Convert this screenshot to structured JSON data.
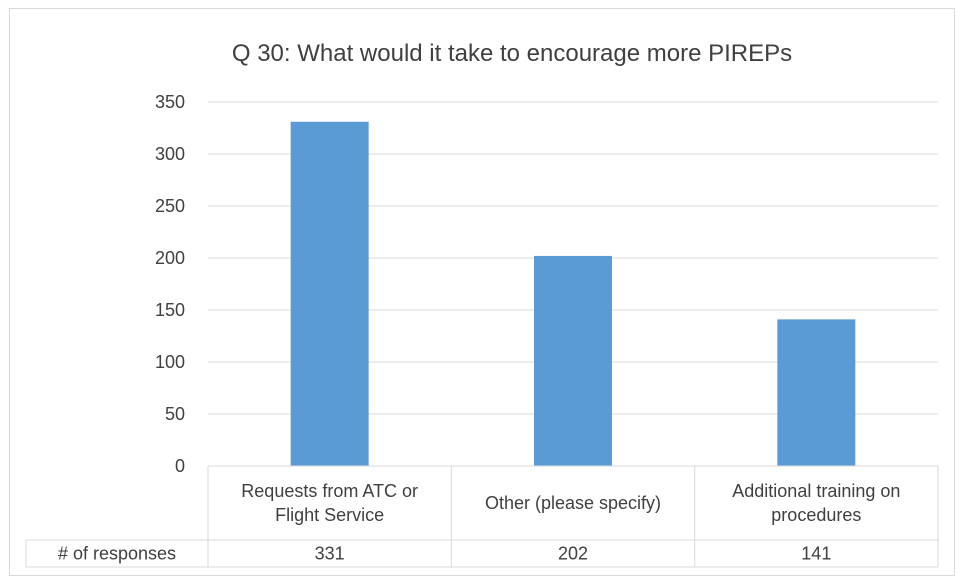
{
  "chart_data": {
    "type": "bar",
    "title": "Q 30: What would it take to encourage more PIREPs",
    "categories": [
      [
        "Requests from ATC or",
        "Flight Service"
      ],
      [
        "Other (please specify)"
      ],
      [
        "Additional training on",
        "procedures"
      ]
    ],
    "series": [
      {
        "name": "# of responses",
        "values": [
          331,
          202,
          141
        ]
      }
    ],
    "value_labels": [
      "331",
      "202",
      "141"
    ],
    "ylim": [
      0,
      350
    ],
    "yticks": [
      0,
      50,
      100,
      150,
      200,
      250,
      300,
      350
    ],
    "ytick_labels": [
      "0",
      "50",
      "100",
      "150",
      "200",
      "250",
      "300",
      "350"
    ],
    "grid": true,
    "legend": "data table below chart",
    "bar_color": "#5b9bd5",
    "grid_color": "#d9d9d9",
    "text_color": "#404040"
  }
}
